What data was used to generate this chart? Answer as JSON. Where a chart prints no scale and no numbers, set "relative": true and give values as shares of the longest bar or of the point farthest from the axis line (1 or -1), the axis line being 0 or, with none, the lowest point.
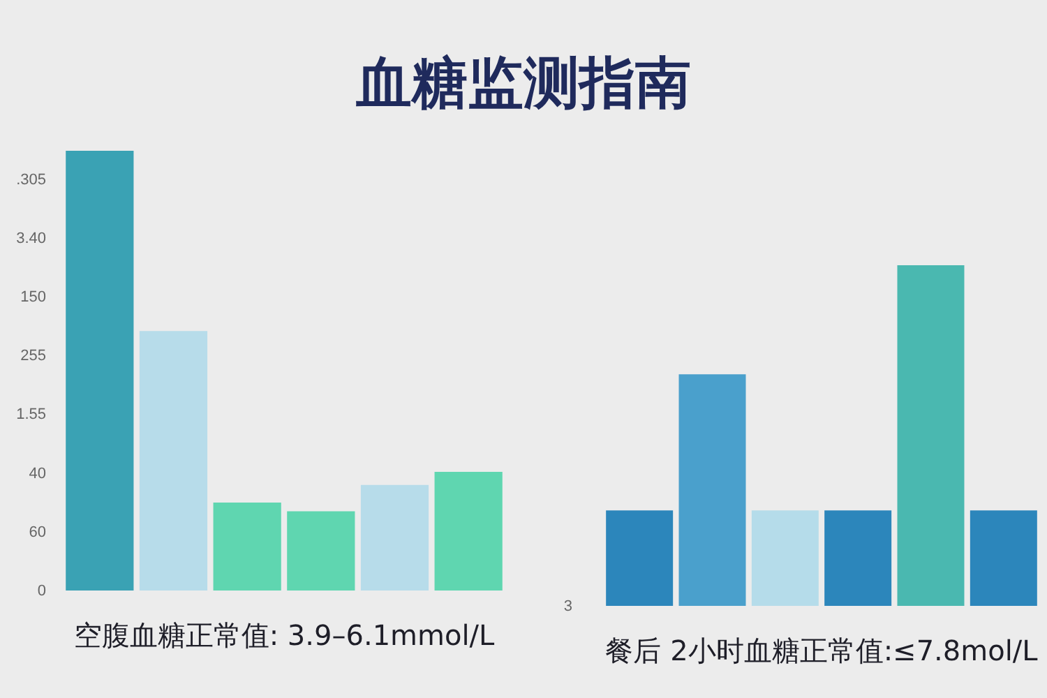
{
  "chart_data": [
    {
      "type": "bar",
      "title": "血糖监测指南",
      "xlabel": "空腹血糖正常值: 3.9–6.1mmol/L",
      "categories": [
        null,
        null,
        null,
        null,
        null,
        null
      ],
      "relative": true,
      "values": [
        1,
        0.59,
        0.2,
        0.18,
        0.24,
        0.27
      ],
      "colors": [
        "#3aa2b4",
        "#b7dcea",
        "#5fd6b0",
        "#5fd6b0",
        "#b7dcea",
        "#5fd6b0"
      ],
      "annotations": [
        ".305",
        "3.40",
        "150",
        "255",
        "1.55",
        "40",
        "60",
        "0"
      ]
    },
    {
      "type": "bar",
      "xlabel": "餐后 2小时血糖正常值:≤7.8mol/L",
      "categories": [
        null,
        null,
        null,
        null,
        null,
        null
      ],
      "relative": true,
      "values": [
        0.28,
        0.68,
        0.28,
        0.28,
        1,
        0.28
      ],
      "colors": [
        "#2c86bb",
        "#4aa0cc",
        "#b5dcea",
        "#2c86bb",
        "#4ab8b0",
        "#2c86bb"
      ],
      "annotations": [
        "3"
      ]
    }
  ]
}
